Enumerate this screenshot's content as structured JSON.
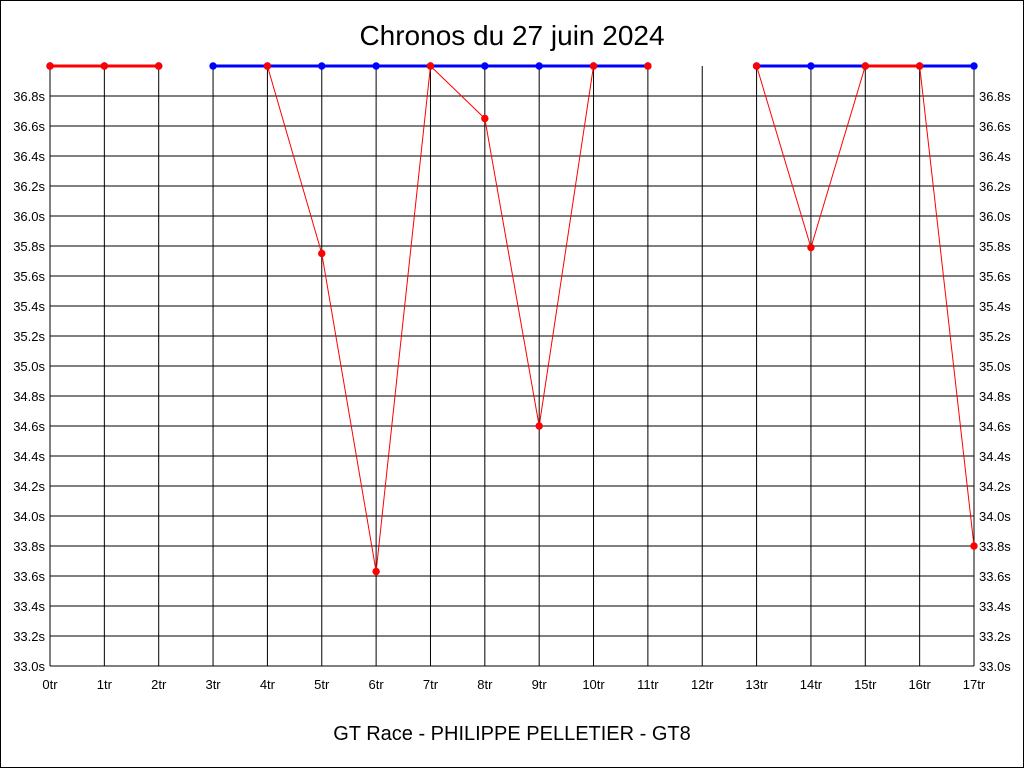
{
  "chart_data": {
    "type": "line",
    "title": "Chronos du 27 juin 2024",
    "subtitle": "GT Race - PHILIPPE PELLETIER - GT8",
    "x": [
      0,
      1,
      2,
      3,
      4,
      5,
      6,
      7,
      8,
      9,
      10,
      11,
      12,
      13,
      14,
      15,
      16,
      17
    ],
    "x_tick_labels": [
      "0tr",
      "1tr",
      "2tr",
      "3tr",
      "4tr",
      "5tr",
      "6tr",
      "7tr",
      "8tr",
      "9tr",
      "10tr",
      "11tr",
      "12tr",
      "13tr",
      "14tr",
      "15tr",
      "16tr",
      "17tr"
    ],
    "y_tick_labels": [
      "33.0s",
      "33.2s",
      "33.4s",
      "33.6s",
      "33.8s",
      "34.0s",
      "34.2s",
      "34.4s",
      "34.6s",
      "34.8s",
      "35.0s",
      "35.2s",
      "35.4s",
      "35.6s",
      "35.8s",
      "36.0s",
      "36.2s",
      "36.4s",
      "36.6s",
      "36.8s"
    ],
    "ylim": [
      33.0,
      37.0
    ],
    "grid": true,
    "colors": {
      "red": "#ff0000",
      "blue": "#0000ff",
      "grid": "#000000"
    },
    "series": [
      {
        "color": "#0000ff",
        "points": [
          [
            0,
            37.0
          ],
          [
            1,
            37.0
          ],
          [
            2,
            37.0
          ],
          [
            3,
            37.0
          ],
          [
            4,
            37.0
          ],
          [
            5,
            37.0
          ],
          [
            6,
            37.0
          ],
          [
            7,
            37.0
          ],
          [
            8,
            37.0
          ],
          [
            9,
            37.0
          ],
          [
            10,
            37.0
          ],
          [
            11,
            37.0
          ],
          [
            13,
            37.0
          ],
          [
            14,
            37.0
          ],
          [
            15,
            37.0
          ],
          [
            16,
            37.0
          ],
          [
            17,
            37.0
          ]
        ],
        "segments": [
          [
            0,
            1
          ],
          [
            1,
            2
          ],
          [
            3,
            4
          ],
          [
            4,
            5
          ],
          [
            5,
            6
          ],
          [
            6,
            7
          ],
          [
            7,
            8
          ],
          [
            8,
            9
          ],
          [
            9,
            10
          ],
          [
            10,
            11
          ],
          [
            13,
            14
          ],
          [
            14,
            15
          ],
          [
            15,
            16
          ],
          [
            16,
            17
          ]
        ]
      },
      {
        "color": "#ff0000",
        "points": [
          [
            0,
            37.0
          ],
          [
            1,
            37.0
          ],
          [
            2,
            37.0
          ],
          [
            4,
            37.0
          ],
          [
            5,
            35.75
          ],
          [
            6,
            33.63
          ],
          [
            7,
            37.0
          ],
          [
            8,
            36.65
          ],
          [
            9,
            34.6
          ],
          [
            10,
            37.0
          ],
          [
            11,
            37.0
          ],
          [
            13,
            37.0
          ],
          [
            14,
            35.79
          ],
          [
            15,
            37.0
          ],
          [
            16,
            37.0
          ],
          [
            17,
            33.8
          ]
        ],
        "segments": [
          [
            0,
            1
          ],
          [
            1,
            2
          ],
          [
            4,
            5
          ],
          [
            5,
            6
          ],
          [
            6,
            7
          ],
          [
            7,
            8
          ],
          [
            8,
            9
          ],
          [
            9,
            10
          ],
          [
            13,
            14
          ],
          [
            14,
            15
          ],
          [
            15,
            16
          ],
          [
            16,
            17
          ]
        ]
      }
    ]
  }
}
